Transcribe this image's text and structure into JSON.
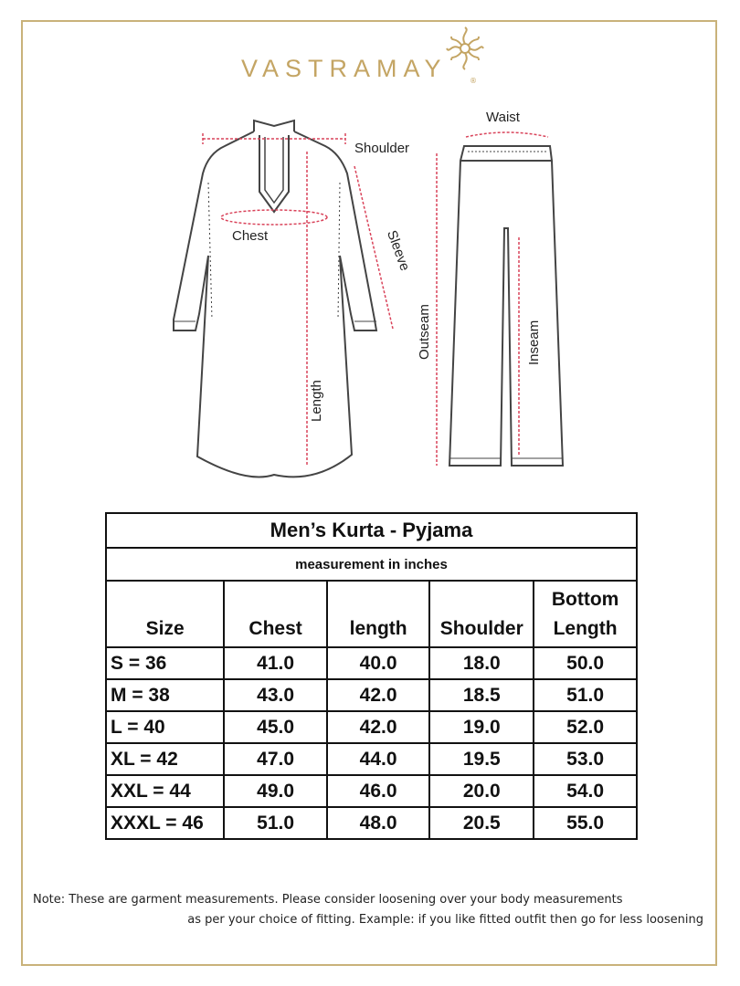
{
  "brand": {
    "name": "VASTRAMAY",
    "registered": "®",
    "color": "#c4a564"
  },
  "diagram_labels": {
    "shoulder": "Shoulder",
    "chest": "Chest",
    "sleeve": "Sleeve",
    "length": "Length",
    "waist": "Waist",
    "outseam": "Outseam",
    "inseam": "Inseam"
  },
  "table": {
    "title": "Men’s Kurta - Pyjama",
    "subtitle": "measurement in inches",
    "headers": [
      "Size",
      "Chest",
      "length",
      "Shoulder",
      "Bottom Length"
    ],
    "rows": [
      [
        "S = 36",
        "41.0",
        "40.0",
        "18.0",
        "50.0"
      ],
      [
        "M = 38",
        "43.0",
        "42.0",
        "18.5",
        "51.0"
      ],
      [
        "L = 40",
        "45.0",
        "42.0",
        "19.0",
        "52.0"
      ],
      [
        "XL = 42",
        "47.0",
        "44.0",
        "19.5",
        "53.0"
      ],
      [
        "XXL = 44",
        "49.0",
        "46.0",
        "20.0",
        "54.0"
      ],
      [
        "XXXL = 46",
        "51.0",
        "48.0",
        "20.5",
        "55.0"
      ]
    ]
  },
  "note": {
    "line1": "Note: These are garment measurements. Please consider loosening over your body measurements",
    "line2": "as per your choice of fitting. Example: if you like fitted outfit then go for less loosening"
  },
  "colors": {
    "frame": "#c9b27a",
    "measure_line": "#d9435a"
  }
}
